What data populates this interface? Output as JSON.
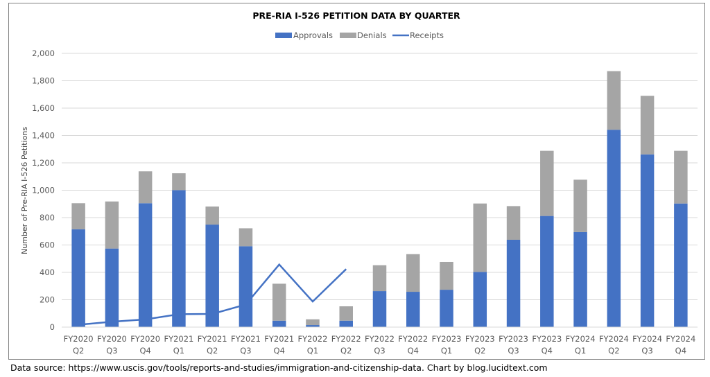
{
  "chart_data": {
    "type": "bar",
    "stacked": true,
    "title": "PRE-RIA I-526 PETITION DATA BY QUARTER",
    "xlabel": "",
    "ylabel": "Number of Pre-RIA I-526 Petitions",
    "ylim": [
      0,
      2000
    ],
    "yticks": [
      0,
      200,
      400,
      600,
      800,
      1000,
      1200,
      1400,
      1600,
      1800,
      2000
    ],
    "ytick_labels": [
      "0",
      "200",
      "400",
      "600",
      "800",
      "1,000",
      "1,200",
      "1,400",
      "1,600",
      "1,800",
      "2,000"
    ],
    "grid": true,
    "legend_position": "top-center",
    "categories": [
      [
        "FY2020",
        "Q2"
      ],
      [
        "FY2020",
        "Q3"
      ],
      [
        "FY2020",
        "Q4"
      ],
      [
        "FY2021",
        "Q1"
      ],
      [
        "FY2021",
        "Q2"
      ],
      [
        "FY2021",
        "Q3"
      ],
      [
        "FY2021",
        "Q4"
      ],
      [
        "FY2022",
        "Q1"
      ],
      [
        "FY2022",
        "Q2"
      ],
      [
        "FY2022",
        "Q3"
      ],
      [
        "FY2022",
        "Q4"
      ],
      [
        "FY2023",
        "Q1"
      ],
      [
        "FY2023",
        "Q2"
      ],
      [
        "FY2023",
        "Q3"
      ],
      [
        "FY2023",
        "Q4"
      ],
      [
        "FY2024",
        "Q1"
      ],
      [
        "FY2024",
        "Q2"
      ],
      [
        "FY2024",
        "Q3"
      ],
      [
        "FY2024",
        "Q4"
      ]
    ],
    "series": [
      {
        "name": "Approvals",
        "type": "bar",
        "color": "#4472c4",
        "values": [
          715,
          574,
          905,
          1001,
          749,
          591,
          47,
          15,
          47,
          263,
          258,
          273,
          403,
          638,
          812,
          694,
          1442,
          1262,
          903
        ]
      },
      {
        "name": "Denials",
        "type": "bar",
        "color": "#a5a5a5",
        "values": [
          190,
          344,
          233,
          123,
          132,
          131,
          270,
          42,
          105,
          189,
          275,
          203,
          500,
          246,
          476,
          383,
          428,
          428,
          385
        ]
      },
      {
        "name": "Receipts",
        "type": "line",
        "color": "#4472c4",
        "values": [
          17,
          39,
          56,
          94,
          96,
          165,
          457,
          187,
          424,
          null,
          null,
          null,
          null,
          null,
          null,
          null,
          null,
          null,
          null
        ]
      }
    ]
  },
  "footer": {
    "text": "Data source: https://www.uscis.gov/tools/reports-and-studies/immigration-and-citizenship-data. Chart by blog.lucidtext.com"
  }
}
